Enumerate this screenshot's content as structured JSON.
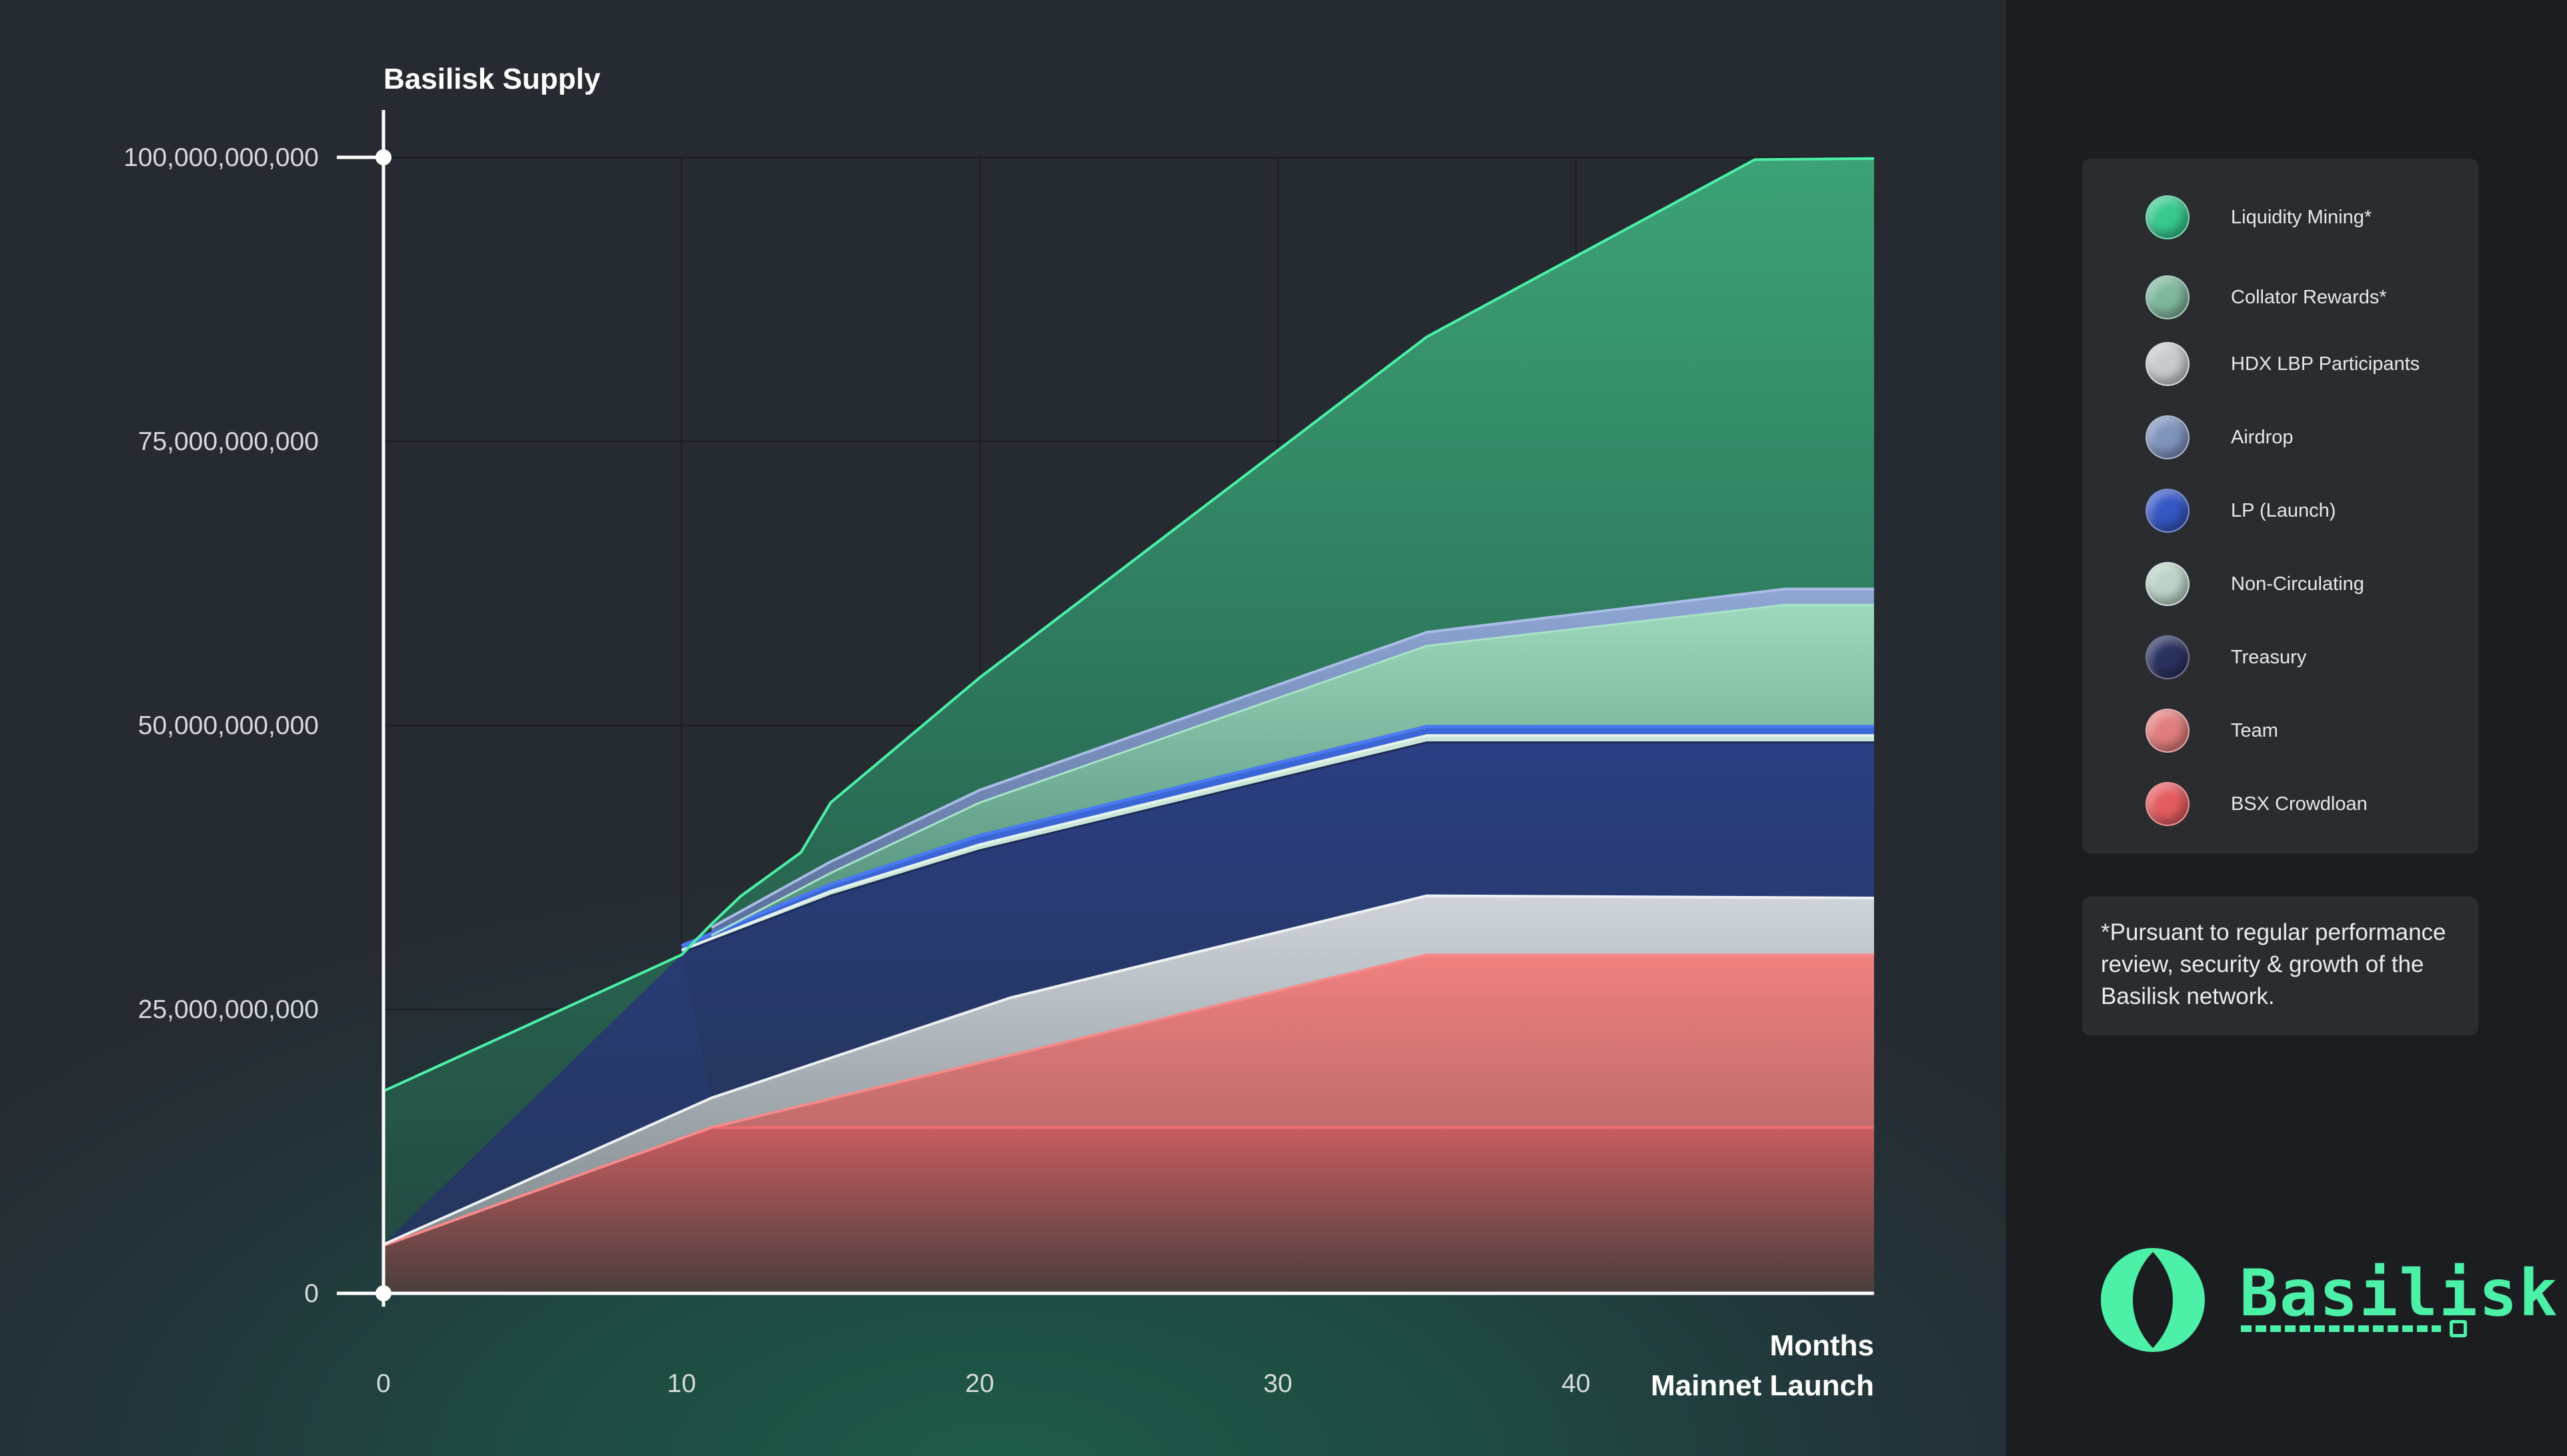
{
  "chart_data": {
    "type": "area",
    "title": "Basilisk Supply",
    "xlabel": "Months",
    "xlabel2": "Mainnet Launch",
    "xticks": [
      0,
      10,
      20,
      30,
      40
    ],
    "yticks": [
      0,
      25000000000,
      50000000000,
      75000000000,
      100000000000
    ],
    "ytick_labels": [
      "0",
      "25,000,000,000",
      "50,000,000,000",
      "75,000,000,000",
      "100,000,000,000"
    ],
    "xlim": [
      0,
      50
    ],
    "ylim": [
      0,
      100000000000
    ],
    "grid": true,
    "series_cumulative_tops": [
      {
        "name": "BSX Crowdloan",
        "color": "#e86566",
        "points": [
          [
            0,
            4200000000
          ],
          [
            11,
            14600000000
          ],
          [
            50,
            14600000000
          ]
        ]
      },
      {
        "name": "Team",
        "color": "#f27b7b",
        "points": [
          [
            0,
            4200000000
          ],
          [
            11,
            14600000000
          ],
          [
            35,
            29800000000
          ],
          [
            50,
            29800000000
          ]
        ]
      },
      {
        "name": "HDX LBP Participants",
        "color": "#d3d9e0",
        "points": [
          [
            0,
            4300000000
          ],
          [
            11,
            17200000000
          ],
          [
            21,
            26000000000
          ],
          [
            35,
            35000000000
          ],
          [
            50,
            34800000000
          ]
        ]
      },
      {
        "name": "Treasury",
        "color": "#2c3a78",
        "points": [
          [
            10,
            30000000000
          ],
          [
            15,
            35000000000
          ],
          [
            20,
            39000000000
          ],
          [
            35,
            48500000000
          ],
          [
            50,
            48500000000
          ]
        ]
      },
      {
        "name": "Non-Circulating",
        "color": "#c9e6d8",
        "points": [
          [
            10,
            30200000000
          ],
          [
            15,
            35400000000
          ],
          [
            20,
            39500000000
          ],
          [
            35,
            49100000000
          ],
          [
            50,
            49100000000
          ]
        ]
      },
      {
        "name": "LP (Launch)",
        "color": "#3b66d6",
        "points": [
          [
            10,
            30600000000
          ],
          [
            15,
            36000000000
          ],
          [
            20,
            40300000000
          ],
          [
            35,
            49900000000
          ],
          [
            50,
            49900000000
          ]
        ]
      },
      {
        "name": "Collator Rewards*",
        "color": "#8fd6b4",
        "points": [
          [
            11,
            31500000000
          ],
          [
            15,
            37000000000
          ],
          [
            20,
            43200000000
          ],
          [
            35,
            57000000000
          ],
          [
            47,
            60600000000
          ],
          [
            50,
            60600000000
          ]
        ]
      },
      {
        "name": "Airdrop",
        "color": "#93a9d4",
        "points": [
          [
            11,
            32200000000
          ],
          [
            15,
            38000000000
          ],
          [
            20,
            44300000000
          ],
          [
            35,
            58200000000
          ],
          [
            47,
            62000000000
          ],
          [
            50,
            62000000000
          ]
        ]
      },
      {
        "name": "Liquidity Mining*",
        "color": "#4cf0a7",
        "points": [
          [
            0,
            17800000000
          ],
          [
            10,
            29800000000
          ],
          [
            11,
            32500000000
          ],
          [
            12,
            35000000000
          ],
          [
            14,
            38800000000
          ],
          [
            15,
            43200000000
          ],
          [
            20,
            54200000000
          ],
          [
            35,
            84200000000
          ],
          [
            46,
            99800000000
          ],
          [
            50,
            99900000000
          ]
        ]
      }
    ]
  },
  "legend": {
    "items": [
      {
        "label": "Liquidity Mining*",
        "color": "#36c98d"
      },
      {
        "label": "Collator Rewards*",
        "color": "#7fb79c"
      },
      {
        "label": "HDX LBP Participants",
        "color": "#c7cace"
      },
      {
        "label": "Airdrop",
        "color": "#7f93bd"
      },
      {
        "label": "LP (Launch)",
        "color": "#3557c4"
      },
      {
        "label": "Non-Circulating",
        "color": "#bcd3c7"
      },
      {
        "label": "Treasury",
        "color": "#2a3160"
      },
      {
        "label": "Team",
        "color": "#e27d7d"
      },
      {
        "label": "BSX Crowdloan",
        "color": "#e45c60"
      }
    ]
  },
  "note": "*Pursuant to regular performance review, security & growth of the Basilisk network.",
  "logo": {
    "wordmark": "Basilisk",
    "accent": "#4cf0a7"
  }
}
